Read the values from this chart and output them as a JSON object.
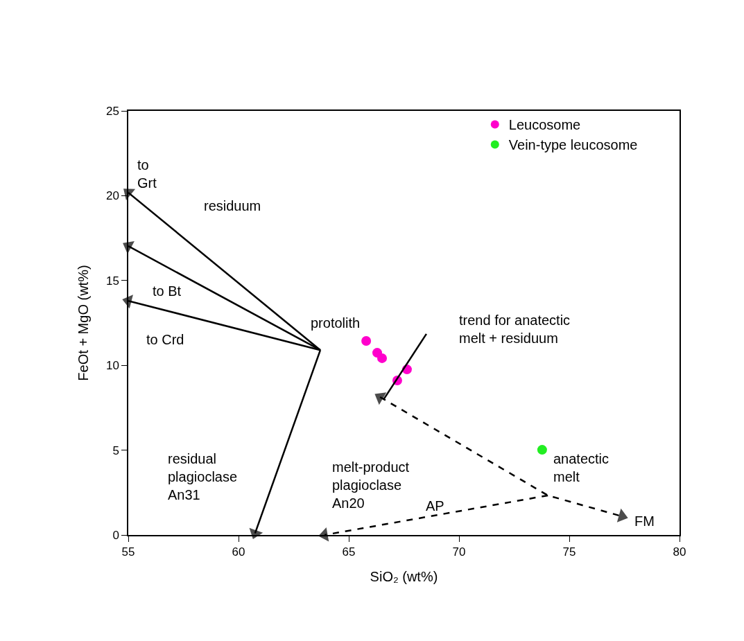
{
  "chart_data": {
    "type": "scatter",
    "xlabel": "SiO₂ (wt%)",
    "ylabel": "FeOt + MgO (wt%)",
    "xlim": [
      55,
      80
    ],
    "xticks": [
      55,
      60,
      65,
      70,
      75,
      80
    ],
    "ylim": [
      0,
      25
    ],
    "yticks": [
      0,
      5,
      10,
      15,
      20,
      25
    ],
    "grid": false,
    "legend": "top right",
    "marker": "circle",
    "series": [
      {
        "name": "Leucosome",
        "color": "#ff00cc",
        "x": [
          65.79,
          66.29,
          66.51,
          67.2,
          67.64
        ],
        "values": [
          11.44,
          10.74,
          10.42,
          9.11,
          9.76
        ]
      },
      {
        "name": "Vein-type leucosome",
        "color": "#22ee22",
        "x": [
          73.77
        ],
        "values": [
          5.02
        ]
      },
      {
        "type": "line",
        "color": "#000000",
        "marker": "triangle",
        "line_style": "solid",
        "x": [
          63.71,
          55
        ],
        "values": [
          10.9,
          20.18
        ]
      },
      {
        "type": "line",
        "color": "#000000",
        "marker": "triangle",
        "line_style": "solid",
        "x": [
          63.71,
          55
        ],
        "values": [
          10.9,
          17.03
        ]
      },
      {
        "type": "line",
        "color": "#000000",
        "marker": "triangle",
        "line_style": "solid",
        "x": [
          63.71,
          55
        ],
        "values": [
          10.9,
          13.8
        ]
      },
      {
        "type": "line",
        "color": "#000000",
        "marker": "triangle",
        "line_style": "solid",
        "x": [
          63.71,
          60.75
        ],
        "values": [
          10.9,
          0.1
        ]
      },
      {
        "type": "line",
        "color": "#000000",
        "marker": "none",
        "line_style": "solid",
        "x": [
          68.52,
          66.57
        ],
        "values": [
          11.85,
          7.97
        ]
      },
      {
        "type": "line",
        "color": "#000000",
        "marker": "triangle",
        "line_style": "dashed",
        "x": [
          66.42,
          74.03,
          77.39
        ],
        "values": [
          8.13,
          2.33,
          1.1
        ]
      },
      {
        "type": "line",
        "color": "#000000",
        "marker": "triangle",
        "line_style": "dashed",
        "x": [
          74.03,
          63.9
        ],
        "values": [
          2.33,
          0
        ]
      }
    ],
    "annotations": [
      "to\nGrt",
      "residuum",
      "to Bt",
      "to Crd",
      "protolith",
      "trend for anatectic\nmelt + residuum",
      "residual\nplagioclase\nAn31",
      "melt-product\nplagioclase\nAn20",
      "AP",
      "anatectic\nmelt",
      "FM"
    ]
  }
}
